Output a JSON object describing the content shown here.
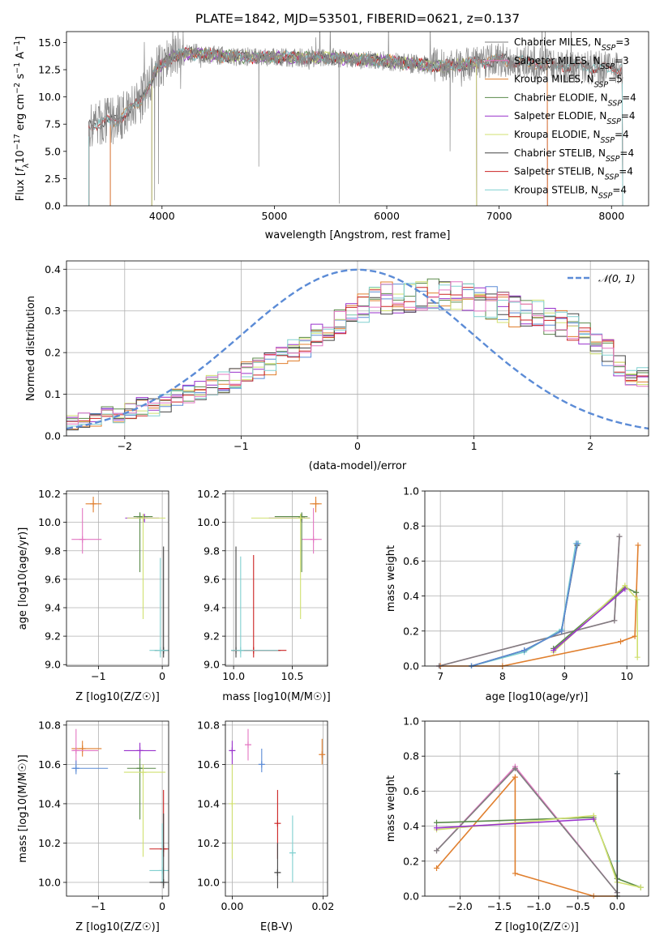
{
  "colors": {
    "chab_miles": "#7f7f7f",
    "salp_miles": "#e377c2",
    "krou_miles": "#e07f2e",
    "chab_elodie": "#5a8a4a",
    "salp_elodie": "#9932cc",
    "krou_elodie": "#d0e070",
    "chab_stelib": "#444444",
    "salp_stelib": "#cc2222",
    "krou_stelib": "#80d0d0",
    "normal": "#5b8bd6"
  },
  "chart_data": [
    {
      "id": "spectrum",
      "type": "line",
      "title": "PLATE=1842, MJD=53501, FIBERID=0621, z=0.137",
      "xlabel": "wavelength [Angstrom, rest frame]",
      "ylabel": "Flux [fλ10⁻¹⁷ erg cm⁻² s⁻¹ A⁻¹]",
      "xlim": [
        3150,
        8330
      ],
      "ylim": [
        0,
        16
      ],
      "xticks": [
        4000,
        5000,
        6000,
        7000,
        8000
      ],
      "yticks": [
        0.0,
        2.5,
        5.0,
        7.5,
        10.0,
        12.5,
        15.0
      ],
      "legend": "top-right",
      "continuum_x": [
        3350,
        3600,
        3800,
        3950,
        4100,
        4300,
        4600,
        5000,
        5500,
        6000,
        6500,
        7000,
        7500,
        8000,
        8100
      ],
      "continuum_y": [
        7.4,
        7.9,
        9.5,
        12.5,
        13.8,
        14.0,
        13.7,
        13.6,
        13.6,
        13.3,
        12.8,
        13.4,
        12.9,
        12.6,
        12.6
      ],
      "data_range": [
        3350,
        8100
      ],
      "series": [
        {
          "name": "Chabrier MILES, N_SSP=3",
          "label": "Chabrier MILES, N",
          "sub": "SSP",
          "n": "=3",
          "color_key": "chab_miles",
          "start": 3540,
          "end": 7430
        },
        {
          "name": "Salpeter MILES, N_SSP=3",
          "label": "Salpeter MILES, N",
          "sub": "SSP",
          "n": "=3",
          "color_key": "salp_miles",
          "start": 3540,
          "end": 7430
        },
        {
          "name": "Kroupa MILES, N_SSP=5",
          "label": "Kroupa MILES, N",
          "sub": "SSP",
          "n": "=5",
          "color_key": "krou_miles",
          "start": 3540,
          "end": 7430
        },
        {
          "name": "Chabrier ELODIE, N_SSP=4",
          "label": "Chabrier ELODIE, N",
          "sub": "SSP",
          "n": "=4",
          "color_key": "chab_elodie",
          "start": 3910,
          "end": 6800
        },
        {
          "name": "Salpeter ELODIE, N_SSP=4",
          "label": "Salpeter ELODIE, N",
          "sub": "SSP",
          "n": "=4",
          "color_key": "salp_elodie",
          "start": 3910,
          "end": 6800
        },
        {
          "name": "Kroupa ELODIE, N_SSP=4",
          "label": "Kroupa ELODIE, N",
          "sub": "SSP",
          "n": "=4",
          "color_key": "krou_elodie",
          "start": 3910,
          "end": 6800
        },
        {
          "name": "Chabrier STELIB, N_SSP=4",
          "label": "Chabrier STELIB, N",
          "sub": "SSP",
          "n": "=4",
          "color_key": "chab_stelib",
          "start": 3350,
          "end": 8100
        },
        {
          "name": "Salpeter STELIB, N_SSP=4",
          "label": "Salpeter STELIB, N",
          "sub": "SSP",
          "n": "=4",
          "color_key": "salp_stelib",
          "start": 3350,
          "end": 8100
        },
        {
          "name": "Kroupa STELIB, N_SSP=4",
          "label": "Kroupa STELIB, N",
          "sub": "SSP",
          "n": "=4",
          "color_key": "krou_stelib",
          "start": 3350,
          "end": 8100
        }
      ]
    },
    {
      "id": "residuals",
      "type": "bar",
      "xlabel": "(data-model)/error",
      "ylabel": "Normed distribution",
      "xlim": [
        -2.5,
        2.5
      ],
      "ylim": [
        0,
        0.42
      ],
      "xticks": [
        -2,
        -1,
        0,
        1,
        2
      ],
      "yticks": [
        0.0,
        0.1,
        0.2,
        0.3,
        0.4
      ],
      "bin_edges_start": -2.5,
      "bin_width": 0.1,
      "base_values": [
        0.03,
        0.035,
        0.04,
        0.05,
        0.05,
        0.06,
        0.07,
        0.07,
        0.08,
        0.09,
        0.1,
        0.11,
        0.12,
        0.13,
        0.14,
        0.15,
        0.16,
        0.17,
        0.19,
        0.2,
        0.22,
        0.24,
        0.25,
        0.27,
        0.29,
        0.31,
        0.32,
        0.33,
        0.33,
        0.33,
        0.34,
        0.34,
        0.33,
        0.33,
        0.33,
        0.32,
        0.32,
        0.31,
        0.3,
        0.29,
        0.29,
        0.28,
        0.27,
        0.26,
        0.25,
        0.22,
        0.2,
        0.17,
        0.15,
        0.14,
        0.12,
        0.1,
        0.09,
        0.08,
        0.08,
        0.07,
        0.07,
        0.06,
        0.05,
        0.05,
        0.04,
        0.04,
        0.03
      ],
      "legend_label": "𝒩(0, 1)",
      "normal_color_key": "normal"
    },
    {
      "id": "age_vs_Z",
      "type": "scatter",
      "xlabel": "Z [log10(Z/Z☉)]",
      "ylabel": "age  [log10(age/yr)]",
      "xlim": [
        -1.5,
        0.1
      ],
      "ylim": [
        8.99,
        10.22
      ],
      "xticks": [
        -1,
        0
      ],
      "yticks": [
        9.0,
        9.2,
        9.4,
        9.6,
        9.8,
        10.0,
        10.2
      ],
      "points": [
        {
          "c": "krou_miles",
          "x": -1.08,
          "y": 10.13,
          "xe": [
            -1.2,
            -0.95
          ],
          "ye": [
            10.07,
            10.18
          ]
        },
        {
          "c": "salp_miles",
          "x": -1.25,
          "y": 9.88,
          "xe": [
            -1.42,
            -0.95
          ],
          "ye": [
            9.78,
            10.1
          ]
        },
        {
          "c": "salp_elodie",
          "x": -0.28,
          "y": 10.03,
          "xe": [
            -0.58,
            -0.05
          ],
          "ye": [
            10.0,
            10.06
          ]
        },
        {
          "c": "chab_elodie",
          "x": -0.35,
          "y": 10.04,
          "xe": [
            -0.45,
            -0.15
          ],
          "ye": [
            9.65,
            10.07
          ]
        },
        {
          "c": "krou_elodie",
          "x": -0.3,
          "y": 10.03,
          "xe": [
            -0.55,
            0.05
          ],
          "ye": [
            9.32,
            10.06
          ]
        },
        {
          "c": "chab_stelib",
          "x": 0.02,
          "y": 9.1,
          "xe": [
            -0.12,
            0.1
          ],
          "ye": [
            9.05,
            9.83
          ]
        },
        {
          "c": "krou_stelib",
          "x": -0.03,
          "y": 9.1,
          "xe": [
            -0.2,
            0.1
          ],
          "ye": [
            9.05,
            9.75
          ]
        }
      ]
    },
    {
      "id": "age_vs_mass",
      "type": "scatter",
      "xlabel": "mass [log10(M/M☉)]",
      "ylabel": "",
      "xlim": [
        9.93,
        10.8
      ],
      "ylim": [
        8.99,
        10.22
      ],
      "xticks": [
        10.0,
        10.5
      ],
      "yticks": [
        9.0,
        9.2,
        9.4,
        9.6,
        9.8,
        10.0,
        10.2
      ],
      "points": [
        {
          "c": "krou_miles",
          "x": 10.7,
          "y": 10.13,
          "xe": [
            10.65,
            10.75
          ],
          "ye": [
            10.07,
            10.18
          ]
        },
        {
          "c": "salp_miles",
          "x": 10.68,
          "y": 9.88,
          "xe": [
            10.58,
            10.75
          ],
          "ye": [
            9.78,
            10.1
          ]
        },
        {
          "c": "salp_elodie",
          "x": 10.58,
          "y": 10.03,
          "xe": [
            10.3,
            10.65
          ],
          "ye": [
            10.0,
            10.06
          ]
        },
        {
          "c": "chab_elodie",
          "x": 10.58,
          "y": 10.04,
          "xe": [
            10.35,
            10.63
          ],
          "ye": [
            9.65,
            10.07
          ]
        },
        {
          "c": "krou_elodie",
          "x": 10.57,
          "y": 10.03,
          "xe": [
            10.15,
            10.65
          ],
          "ye": [
            9.32,
            10.06
          ]
        },
        {
          "c": "chab_stelib",
          "x": 10.02,
          "y": 9.1,
          "xe": [
            9.98,
            10.4
          ],
          "ye": [
            9.05,
            9.83
          ]
        },
        {
          "c": "salp_stelib",
          "x": 10.17,
          "y": 9.1,
          "xe": [
            10.0,
            10.45
          ],
          "ye": [
            9.05,
            9.77
          ]
        },
        {
          "c": "krou_stelib",
          "x": 10.06,
          "y": 9.1,
          "xe": [
            9.98,
            10.38
          ],
          "ye": [
            9.05,
            9.76
          ]
        }
      ]
    },
    {
      "id": "weight_vs_age",
      "type": "line",
      "xlabel": "age  [log10(age/yr)]",
      "ylabel": "mass weight",
      "xlim": [
        6.75,
        10.35
      ],
      "ylim": [
        0,
        1.0
      ],
      "xticks": [
        7,
        8,
        9,
        10
      ],
      "yticks": [
        0.0,
        0.2,
        0.4,
        0.6,
        0.8,
        1.0
      ],
      "series": [
        {
          "c": "krou_miles",
          "x": [
            7.0,
            8.0,
            9.9,
            10.13,
            10.18
          ],
          "y": [
            0.0,
            0.0,
            0.14,
            0.17,
            0.69
          ]
        },
        {
          "c": "salp_miles",
          "x": [
            6.98,
            9.8,
            9.88
          ],
          "y": [
            0.0,
            0.26,
            0.74
          ]
        },
        {
          "c": "chab_miles",
          "x": [
            6.98,
            9.8,
            9.88
          ],
          "y": [
            0.0,
            0.26,
            0.74
          ]
        },
        {
          "c": "chab_elodie",
          "x": [
            8.82,
            9.97,
            10.15
          ],
          "y": [
            0.1,
            0.45,
            0.42
          ]
        },
        {
          "c": "krou_elodie",
          "x": [
            8.82,
            9.97,
            10.17,
            10.17
          ],
          "y": [
            0.08,
            0.46,
            0.38,
            0.05
          ]
        },
        {
          "c": "salp_elodie",
          "x": [
            8.82,
            9.97
          ],
          "y": [
            0.09,
            0.44
          ]
        },
        {
          "c": "krou_stelib",
          "x": [
            7.5,
            8.35,
            8.95,
            9.18,
            9.22
          ],
          "y": [
            0.0,
            0.08,
            0.21,
            0.7,
            0.7
          ]
        },
        {
          "c": "chab_stelib",
          "x": [
            7.5,
            8.35,
            8.95,
            9.2
          ],
          "y": [
            0.0,
            0.09,
            0.2,
            0.69
          ]
        },
        {
          "c": "normal",
          "x": [
            7.5,
            8.35,
            8.95,
            9.2
          ],
          "y": [
            0.0,
            0.09,
            0.2,
            0.7
          ]
        }
      ]
    },
    {
      "id": "mass_vs_Z",
      "type": "scatter",
      "xlabel": "Z [log10(Z/Z☉)]",
      "ylabel": "mass [log10(M/M☉)]",
      "xlim": [
        -1.5,
        0.1
      ],
      "ylim": [
        9.93,
        10.82
      ],
      "xticks": [
        -1,
        0
      ],
      "yticks": [
        10.0,
        10.2,
        10.4,
        10.6,
        10.8
      ],
      "points": [
        {
          "c": "krou_miles",
          "x": -1.25,
          "y": 10.68,
          "xe": [
            -1.42,
            -0.95
          ],
          "ye": [
            10.64,
            10.72
          ]
        },
        {
          "c": "salp_miles",
          "x": -1.35,
          "y": 10.67,
          "xe": [
            -1.42,
            -1.0
          ],
          "ye": [
            10.6,
            10.78
          ]
        },
        {
          "c": "normal",
          "x": -1.35,
          "y": 10.58,
          "xe": [
            -1.42,
            -0.85
          ],
          "ye": [
            10.55,
            10.62
          ]
        },
        {
          "c": "salp_elodie",
          "x": -0.35,
          "y": 10.67,
          "xe": [
            -0.6,
            -0.1
          ],
          "ye": [
            10.62,
            10.71
          ]
        },
        {
          "c": "chab_elodie",
          "x": -0.35,
          "y": 10.58,
          "xe": [
            -0.55,
            -0.1
          ],
          "ye": [
            10.32,
            10.63
          ]
        },
        {
          "c": "krou_elodie",
          "x": -0.3,
          "y": 10.56,
          "xe": [
            -0.6,
            0.05
          ],
          "ye": [
            10.13,
            10.6
          ]
        },
        {
          "c": "salp_stelib",
          "x": 0.02,
          "y": 10.17,
          "xe": [
            -0.2,
            0.1
          ],
          "ye": [
            10.13,
            10.47
          ]
        },
        {
          "c": "krou_stelib",
          "x": 0.0,
          "y": 10.06,
          "xe": [
            -0.2,
            0.1
          ],
          "ye": [
            10.0,
            10.3
          ]
        },
        {
          "c": "chab_stelib",
          "x": 0.02,
          "y": 10.0,
          "xe": [
            -0.2,
            0.1
          ],
          "ye": [
            9.97,
            10.35
          ]
        }
      ]
    },
    {
      "id": "mass_vs_ebv",
      "type": "scatter",
      "xlabel": "E(B-V)",
      "ylabel": "",
      "xlim": [
        -0.0015,
        0.021
      ],
      "ylim": [
        9.93,
        10.82
      ],
      "xticks": [
        0.0,
        0.02
      ],
      "yticks": [
        10.0,
        10.2,
        10.4,
        10.6,
        10.8
      ],
      "points": [
        {
          "c": "salp_elodie",
          "x": 0.0,
          "y": 10.67,
          "ye": [
            10.6,
            10.72
          ]
        },
        {
          "c": "krou_elodie",
          "x": 0.0,
          "y": 10.4,
          "ye": [
            10.12,
            10.6
          ]
        },
        {
          "c": "salp_miles",
          "x": 0.0035,
          "y": 10.7,
          "ye": [
            10.62,
            10.78
          ]
        },
        {
          "c": "normal",
          "x": 0.0065,
          "y": 10.6,
          "ye": [
            10.56,
            10.68
          ]
        },
        {
          "c": "salp_stelib",
          "x": 0.01,
          "y": 10.3,
          "ye": [
            10.12,
            10.47
          ]
        },
        {
          "c": "chab_stelib",
          "x": 0.01,
          "y": 10.05,
          "ye": [
            9.97,
            10.2
          ]
        },
        {
          "c": "krou_stelib",
          "x": 0.0133,
          "y": 10.15,
          "ye": [
            10.0,
            10.34
          ]
        },
        {
          "c": "krou_miles",
          "x": 0.0198,
          "y": 10.65,
          "ye": [
            10.6,
            10.73
          ]
        }
      ]
    },
    {
      "id": "weight_vs_Z",
      "type": "line",
      "xlabel": "Z [log10(Z/Z☉)]",
      "ylabel": "mass weight",
      "xlim": [
        -2.45,
        0.4
      ],
      "ylim": [
        0,
        1.0
      ],
      "xticks": [
        -2.0,
        -1.5,
        -1.0,
        -0.5,
        0.0
      ],
      "yticks": [
        0.0,
        0.2,
        0.4,
        0.6,
        0.8,
        1.0
      ],
      "series": [
        {
          "c": "krou_miles",
          "x": [
            -2.3,
            -1.3,
            -1.3,
            -0.3,
            0.0
          ],
          "y": [
            0.16,
            0.68,
            0.13,
            0.0,
            0.0
          ]
        },
        {
          "c": "salp_miles",
          "x": [
            -2.3,
            -1.3,
            0.0
          ],
          "y": [
            0.26,
            0.74,
            0.02
          ]
        },
        {
          "c": "chab_miles",
          "x": [
            -2.3,
            -1.3,
            0.0
          ],
          "y": [
            0.26,
            0.73,
            0.02
          ]
        },
        {
          "c": "chab_elodie",
          "x": [
            -2.3,
            -0.3,
            0.0,
            0.3
          ],
          "y": [
            0.42,
            0.45,
            0.1,
            0.05
          ]
        },
        {
          "c": "krou_elodie",
          "x": [
            -2.3,
            -0.3,
            0.0,
            0.3
          ],
          "y": [
            0.38,
            0.46,
            0.08,
            0.05
          ]
        },
        {
          "c": "salp_elodie",
          "x": [
            -2.3,
            -0.3
          ],
          "y": [
            0.39,
            0.44
          ]
        },
        {
          "c": "krou_stelib",
          "x": [
            0.0,
            0.0,
            0.0
          ],
          "y": [
            0.0,
            0.2,
            0.7
          ]
        },
        {
          "c": "chab_stelib",
          "x": [
            0.0,
            0.0
          ],
          "y": [
            0.0,
            0.7
          ]
        }
      ]
    }
  ]
}
